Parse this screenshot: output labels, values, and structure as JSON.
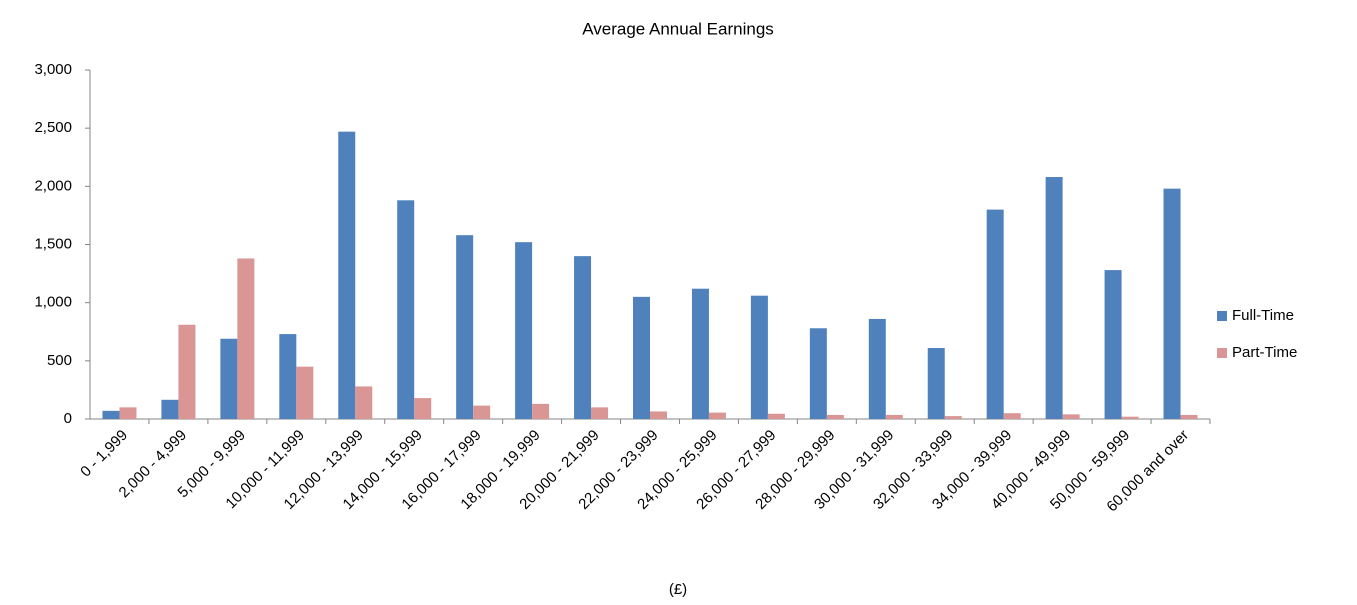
{
  "chart_data": {
    "type": "bar",
    "title": "Average Annual Earnings",
    "x_label": "(£)",
    "categories": [
      "0 - 1,999",
      "2,000 - 4,999",
      "5,000 - 9,999",
      "10,000 - 11,999",
      "12,000 - 13,999",
      "14,000 - 15,999",
      "16,000 - 17,999",
      "18,000 - 19,999",
      "20,000 - 21,999",
      "22,000 - 23,999",
      "24,000 - 25,999",
      "26,000 - 27,999",
      "28,000 - 29,999",
      "30,000 - 31,999",
      "32,000 - 33,999",
      "34,000 - 39,999",
      "40,000 - 49,999",
      "50,000 - 59,999",
      "60,000 and over"
    ],
    "series": [
      {
        "name": "Full-Time",
        "color": "#4f81bd",
        "values": [
          70,
          165,
          690,
          730,
          2470,
          1880,
          1580,
          1520,
          1400,
          1050,
          1120,
          1060,
          780,
          860,
          610,
          1800,
          2080,
          1280,
          1980
        ]
      },
      {
        "name": "Part-Time",
        "color": "#d99694",
        "values": [
          100,
          810,
          1380,
          450,
          280,
          180,
          115,
          130,
          100,
          65,
          55,
          45,
          35,
          35,
          25,
          50,
          40,
          20,
          35
        ]
      }
    ],
    "ylim": [
      0,
      3000
    ],
    "yticks": [
      0,
      500,
      {
        "value": 1000,
        "label": "1,000"
      },
      {
        "value": 1500,
        "label": "1,500"
      },
      {
        "value": 2000,
        "label": "2,000"
      },
      {
        "value": 2500,
        "label": "2,500"
      },
      {
        "value": 3000,
        "label": "3,000"
      }
    ],
    "grid": false,
    "legend": "right"
  }
}
